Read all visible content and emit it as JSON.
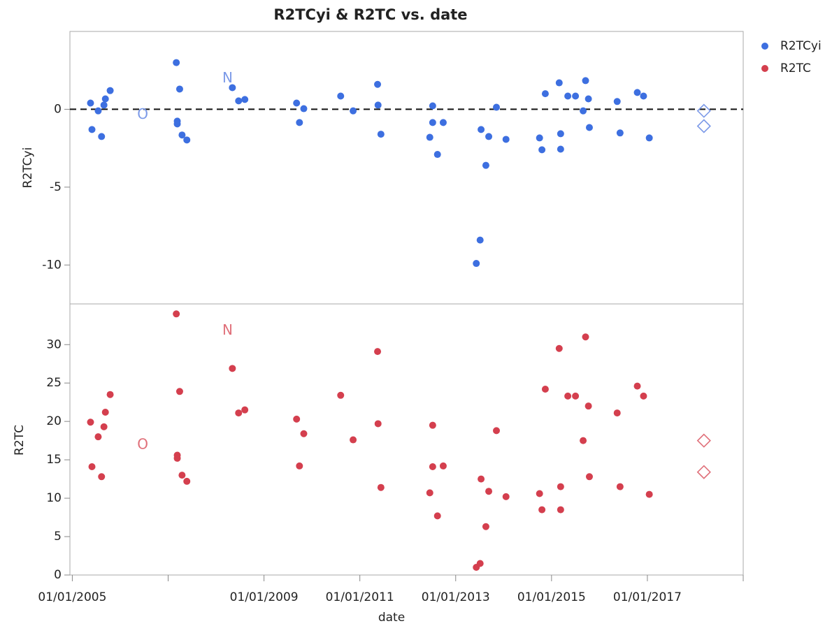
{
  "chart_data": [
    {
      "type": "scatter",
      "title": "R2TCyi & R2TC vs. date",
      "ylabel": "R2TCyi",
      "xlim": [
        2004.95,
        2019.0
      ],
      "ylim": [
        -12.5,
        5
      ],
      "yticks": [
        -10,
        -5,
        0
      ],
      "legend": "right",
      "hline": {
        "value": 0,
        "style": "dashed"
      },
      "series": [
        {
          "name": "R2TCyi",
          "color": "#3d6fe0",
          "x": [
            2005.38,
            2005.41,
            2005.54,
            2005.61,
            2005.66,
            2005.69,
            2005.79,
            2007.17,
            2007.19,
            2007.19,
            2007.24,
            2007.29,
            2007.39,
            2008.34,
            2008.47,
            2008.6,
            2009.68,
            2009.74,
            2009.83,
            2010.6,
            2010.86,
            2011.37,
            2011.38,
            2011.44,
            2012.46,
            2012.52,
            2012.52,
            2012.62,
            2012.74,
            2013.43,
            2013.51,
            2013.53,
            2013.63,
            2013.69,
            2013.85,
            2014.05,
            2014.75,
            2014.8,
            2014.87,
            2015.16,
            2015.19,
            2015.19,
            2015.34,
            2015.5,
            2015.66,
            2015.71,
            2015.77,
            2015.79,
            2016.37,
            2016.43,
            2016.79,
            2016.92,
            2017.04
          ],
          "values": [
            0.4,
            -1.3,
            -0.1,
            -1.75,
            0.27,
            0.67,
            1.2,
            3.0,
            -0.76,
            -0.94,
            1.3,
            -1.65,
            -1.97,
            1.39,
            0.54,
            0.63,
            0.4,
            -0.85,
            0.04,
            0.85,
            -0.1,
            1.6,
            0.27,
            -1.6,
            -1.8,
            0.22,
            -0.85,
            -2.9,
            -0.85,
            -9.9,
            -8.4,
            -1.3,
            -3.6,
            -1.75,
            0.13,
            -1.93,
            -1.84,
            -2.6,
            1.0,
            1.7,
            -1.57,
            -2.56,
            0.85,
            0.85,
            -0.1,
            1.84,
            0.67,
            -1.17,
            0.5,
            -1.52,
            1.08,
            0.85,
            -1.84
          ]
        },
        {
          "marker": "diamond",
          "color": "#7c9ae8",
          "x": [
            2018.18,
            2018.18
          ],
          "values": [
            -0.1,
            -1.08
          ]
        }
      ],
      "annotations": [
        {
          "text": "O",
          "x": 2006.47,
          "y": -0.36,
          "color": "#7c9ae8"
        },
        {
          "text": "N",
          "x": 2008.24,
          "y": 1.97,
          "color": "#7c9ae8"
        }
      ]
    },
    {
      "type": "scatter",
      "ylabel": "R2TC",
      "xlabel": "date",
      "xlim": [
        2004.95,
        2019.0
      ],
      "xticks": [
        {
          "value": 2005,
          "label": "01/01/2005"
        },
        {
          "value": 2007,
          "label": null
        },
        {
          "value": 2009,
          "label": "01/01/2009"
        },
        {
          "value": 2011,
          "label": "01/01/2011"
        },
        {
          "value": 2013,
          "label": "01/01/2013"
        },
        {
          "value": 2015,
          "label": "01/01/2015"
        },
        {
          "value": 2017,
          "label": "01/01/2017"
        },
        {
          "value": 2019,
          "label": null
        }
      ],
      "ylim": [
        0,
        35.3
      ],
      "yticks": [
        0,
        5,
        10,
        15,
        20,
        25,
        30
      ],
      "series": [
        {
          "name": "R2TC",
          "color": "#d43f4e",
          "x": [
            2005.38,
            2005.41,
            2005.54,
            2005.61,
            2005.66,
            2005.69,
            2005.79,
            2007.17,
            2007.19,
            2007.19,
            2007.24,
            2007.29,
            2007.39,
            2008.34,
            2008.47,
            2008.6,
            2009.68,
            2009.74,
            2009.83,
            2010.6,
            2010.86,
            2011.37,
            2011.38,
            2011.44,
            2012.46,
            2012.52,
            2012.52,
            2012.62,
            2012.74,
            2013.43,
            2013.51,
            2013.53,
            2013.63,
            2013.69,
            2013.85,
            2014.05,
            2014.75,
            2014.8,
            2014.87,
            2015.16,
            2015.19,
            2015.19,
            2015.34,
            2015.5,
            2015.66,
            2015.71,
            2015.77,
            2015.79,
            2016.37,
            2016.43,
            2016.79,
            2016.92,
            2017.04
          ],
          "values": [
            19.9,
            14.1,
            18.0,
            12.8,
            19.3,
            21.2,
            23.5,
            34.0,
            15.2,
            15.6,
            23.9,
            13.0,
            12.2,
            26.9,
            21.1,
            21.5,
            20.3,
            14.2,
            18.4,
            23.4,
            17.6,
            29.1,
            19.7,
            11.4,
            10.7,
            19.5,
            14.1,
            7.7,
            14.2,
            1.0,
            1.5,
            12.5,
            6.3,
            10.9,
            18.8,
            10.2,
            10.6,
            8.5,
            24.2,
            29.5,
            11.5,
            8.5,
            23.3,
            23.3,
            17.5,
            31.0,
            22.0,
            12.8,
            21.1,
            11.5,
            24.6,
            23.3,
            10.5
          ]
        },
        {
          "marker": "diamond",
          "color": "#e0707a",
          "x": [
            2018.18,
            2018.18
          ],
          "values": [
            17.5,
            13.4
          ]
        }
      ],
      "annotations": [
        {
          "text": "O",
          "x": 2006.47,
          "y": 16.9,
          "color": "#e0707a"
        },
        {
          "text": "N",
          "x": 2008.24,
          "y": 31.8,
          "color": "#e0707a"
        }
      ]
    }
  ]
}
